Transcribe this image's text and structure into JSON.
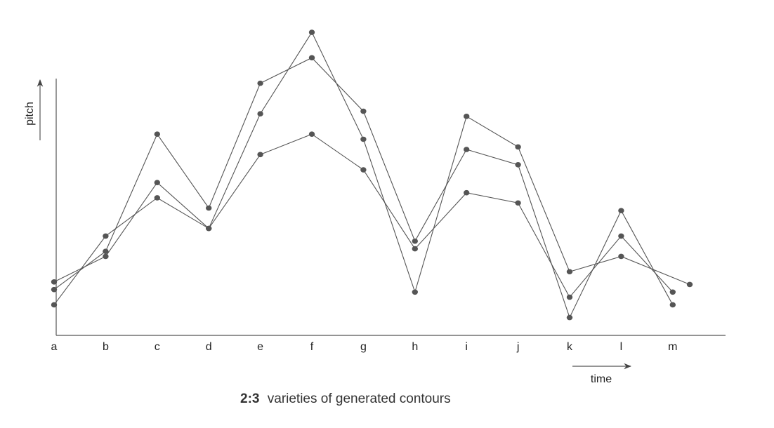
{
  "chart_data": {
    "type": "line",
    "title": "",
    "caption_number": "2:3",
    "caption_text": "varieties of generated contours",
    "xlabel": "time",
    "ylabel": "pitch",
    "categories": [
      "a",
      "b",
      "c",
      "d",
      "e",
      "f",
      "g",
      "h",
      "i",
      "j",
      "k",
      "l",
      "m"
    ],
    "ylim": [
      0,
      100
    ],
    "grid": false,
    "legend": "none",
    "marker": "filled-circle",
    "line_color": "#555555",
    "series": [
      {
        "points": [
          [
            0,
            18
          ],
          [
            1,
            33
          ],
          [
            2,
            79
          ],
          [
            3,
            50
          ],
          [
            4,
            99
          ],
          [
            5,
            109
          ],
          [
            6,
            88
          ],
          [
            7,
            37
          ],
          [
            8,
            73
          ],
          [
            9,
            67
          ],
          [
            10,
            7
          ],
          [
            11,
            49
          ],
          [
            12,
            12
          ]
        ]
      },
      {
        "points": [
          [
            0,
            21
          ],
          [
            1,
            31
          ],
          [
            2,
            60
          ],
          [
            3,
            42
          ],
          [
            4,
            87
          ],
          [
            5,
            119
          ],
          [
            6,
            77
          ],
          [
            7,
            17
          ],
          [
            8,
            86
          ],
          [
            9,
            74
          ],
          [
            10,
            25
          ],
          [
            11,
            31
          ],
          [
            12.33,
            20
          ]
        ]
      },
      {
        "points": [
          [
            0,
            12
          ],
          [
            1,
            39
          ],
          [
            2,
            54
          ],
          [
            3,
            42
          ],
          [
            4,
            71
          ],
          [
            5,
            79
          ],
          [
            6,
            65
          ],
          [
            7,
            34
          ],
          [
            8,
            56
          ],
          [
            9,
            52
          ],
          [
            10,
            15
          ],
          [
            11,
            39
          ],
          [
            12,
            17
          ]
        ]
      }
    ]
  }
}
